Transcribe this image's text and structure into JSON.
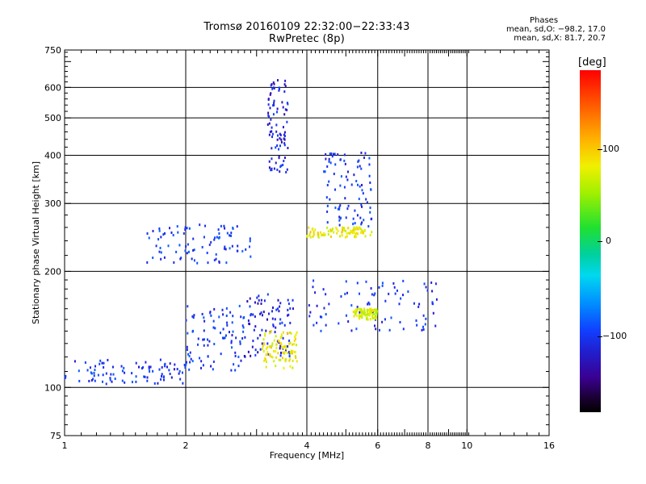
{
  "header": {
    "title_line1": "Tromsø 20160109 22:32:00−22:33:43",
    "title_line2": "RwPretec (8p)"
  },
  "stats": {
    "heading": "Phases",
    "line1": "mean, sd,O: −98.2, 17.0",
    "line2": "mean, sd,X: 81.7, 20.7"
  },
  "colorbar": {
    "title": "[deg]",
    "ticks": [
      "100",
      "0",
      "−100"
    ]
  },
  "chart_data": {
    "type": "scatter",
    "xlabel": "Frequency [MHz]",
    "ylabel": "Stationary phase Virtual Height [km]",
    "x_scale": "log",
    "y_scale": "log",
    "xlim": [
      1,
      16
    ],
    "ylim": [
      75,
      750
    ],
    "x_ticks": [
      "1",
      "2",
      "4",
      "6",
      "8",
      "10",
      "16"
    ],
    "x_tick_values": [
      1,
      2,
      4,
      6,
      8,
      10,
      16
    ],
    "y_ticks": [
      "75",
      "100",
      "200",
      "300",
      "400",
      "500",
      "600",
      "750"
    ],
    "y_tick_values": [
      75,
      100,
      200,
      300,
      400,
      500,
      600,
      750
    ],
    "grid": true,
    "clusters": [
      {
        "name": "",
        "freq_range": [
          1.0,
          2.0
        ],
        "height_range": [
          102,
          118
        ],
        "phase": -100
      },
      {
        "name": "",
        "freq_range": [
          2.0,
          2.8
        ],
        "height_range": [
          110,
          165
        ],
        "phase": -95
      },
      {
        "name": "",
        "freq_range": [
          2.8,
          3.7
        ],
        "height_range": [
          120,
          175
        ],
        "phase": -110
      },
      {
        "name": "",
        "freq_range": [
          3.1,
          3.8
        ],
        "height_range": [
          112,
          140
        ],
        "phase": 100
      },
      {
        "name": "",
        "freq_range": [
          3.2,
          3.6
        ],
        "height_range": [
          360,
          630
        ],
        "phase": -110
      },
      {
        "name": "",
        "freq_range": [
          1.6,
          2.9
        ],
        "height_range": [
          210,
          265
        ],
        "phase": -95
      },
      {
        "name": "",
        "freq_range": [
          4.0,
          8.6
        ],
        "height_range": [
          140,
          190
        ],
        "phase": -100
      },
      {
        "name": "",
        "freq_range": [
          4.0,
          5.8
        ],
        "height_range": [
          245,
          260
        ],
        "phase": 100
      },
      {
        "name": "",
        "freq_range": [
          4.4,
          5.8
        ],
        "height_range": [
          260,
          410
        ],
        "phase": -100
      },
      {
        "name": "",
        "freq_range": [
          5.2,
          6.0
        ],
        "height_range": [
          150,
          160
        ],
        "phase": 90
      }
    ]
  }
}
